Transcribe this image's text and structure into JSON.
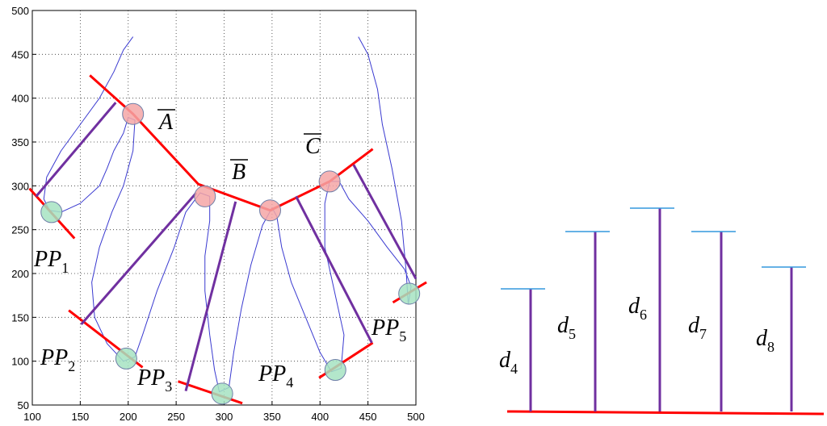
{
  "chart_data": [
    {
      "type": "line",
      "xlim": [
        100,
        500
      ],
      "ylim": [
        50,
        500
      ],
      "xticks": [
        100,
        150,
        200,
        250,
        300,
        350,
        400,
        450,
        500
      ],
      "yticks": [
        50,
        100,
        150,
        200,
        250,
        300,
        350,
        400,
        450,
        500
      ],
      "grid": true,
      "series": [
        {
          "style": "line",
          "color": "#3a3ad0",
          "width": 1,
          "x": [
            205,
            195,
            185,
            170,
            150,
            130,
            115,
            112,
            118,
            130,
            150,
            170,
            178,
            185,
            195,
            200,
            207,
            205,
            195,
            183,
            170,
            162,
            165,
            178,
            195,
            207,
            215,
            230,
            248,
            260,
            275,
            285,
            285,
            280,
            280,
            285,
            290,
            295,
            305,
            310,
            318,
            328,
            340,
            350,
            355,
            360,
            370,
            385,
            400,
            412,
            422,
            425,
            415,
            405,
            405,
            410,
            420,
            430,
            450,
            470,
            488,
            495,
            492,
            490,
            485,
            475,
            465,
            460,
            450,
            440
          ],
          "y": [
            470,
            455,
            430,
            400,
            370,
            340,
            310,
            285,
            272,
            270,
            280,
            300,
            320,
            340,
            360,
            378,
            375,
            340,
            300,
            270,
            230,
            190,
            150,
            120,
            100,
            105,
            130,
            180,
            230,
            270,
            292,
            288,
            260,
            220,
            180,
            130,
            90,
            65,
            70,
            110,
            160,
            210,
            255,
            275,
            265,
            230,
            190,
            150,
            110,
            88,
            92,
            130,
            180,
            230,
            280,
            305,
            305,
            285,
            260,
            230,
            205,
            185,
            165,
            200,
            260,
            320,
            370,
            410,
            450,
            470
          ]
        },
        {
          "style": "line",
          "color": "#ff0000",
          "width": 3,
          "x": [
            160,
            205,
            273,
            348,
            410,
            455
          ],
          "y": [
            426,
            382,
            302,
            272,
            305,
            342
          ]
        },
        {
          "style": "line",
          "color": "#ff0000",
          "width": 3,
          "x": [
            97,
            144
          ],
          "y": [
            297,
            240
          ]
        },
        {
          "style": "line",
          "color": "#ff0000",
          "width": 3,
          "x": [
            138,
            215
          ],
          "y": [
            158,
            93
          ]
        },
        {
          "style": "line",
          "color": "#ff0000",
          "width": 3,
          "x": [
            252,
            319
          ],
          "y": [
            77,
            52
          ]
        },
        {
          "style": "line",
          "color": "#ff0000",
          "width": 3,
          "x": [
            399,
            455
          ],
          "y": [
            81,
            121
          ]
        },
        {
          "style": "line",
          "color": "#ff0000",
          "width": 3,
          "x": [
            476,
            511
          ],
          "y": [
            167,
            190
          ]
        },
        {
          "style": "line",
          "color": "#7030a0",
          "width": 3,
          "x": [
            104,
            187
          ],
          "y": [
            288,
            395
          ]
        },
        {
          "style": "line",
          "color": "#7030a0",
          "width": 3,
          "x": [
            151,
            271
          ],
          "y": [
            142,
            292
          ]
        },
        {
          "style": "line",
          "color": "#7030a0",
          "width": 3,
          "x": [
            260,
            312
          ],
          "y": [
            66,
            282
          ]
        },
        {
          "style": "line",
          "color": "#7030a0",
          "width": 3,
          "x": [
            375,
            454
          ],
          "y": [
            288,
            121
          ]
        },
        {
          "style": "line",
          "color": "#7030a0",
          "width": 3,
          "x": [
            435,
            500
          ],
          "y": [
            324,
            194
          ]
        },
        {
          "style": "marker",
          "color": "#f4a6a6",
          "x": [
            205,
            280,
            348,
            410
          ],
          "y": [
            382,
            288,
            272,
            305
          ]
        },
        {
          "style": "marker",
          "color": "#a6e3c2",
          "x": [
            120,
            198,
            298,
            416,
            493
          ],
          "y": [
            270,
            103,
            63,
            90,
            177
          ]
        }
      ],
      "annotations": [
        {
          "text": "A",
          "overline": true
        },
        {
          "text": "B",
          "overline": true
        },
        {
          "text": "C",
          "overline": true
        },
        {
          "text": "PP",
          "sub": "1"
        },
        {
          "text": "PP",
          "sub": "2"
        },
        {
          "text": "PP",
          "sub": "3"
        },
        {
          "text": "PP",
          "sub": "4"
        },
        {
          "text": "PP",
          "sub": "5"
        }
      ]
    },
    {
      "type": "bar",
      "categories": [
        {
          "text": "d",
          "sub": "4"
        },
        {
          "text": "d",
          "sub": "5"
        },
        {
          "text": "d",
          "sub": "6"
        },
        {
          "text": "d",
          "sub": "7"
        },
        {
          "text": "d",
          "sub": "8"
        }
      ],
      "values": [
        152,
        223,
        252,
        223,
        179
      ],
      "color": "#7030a0",
      "cap_color": "#3399dd",
      "baseline_color": "#ff0000"
    }
  ]
}
